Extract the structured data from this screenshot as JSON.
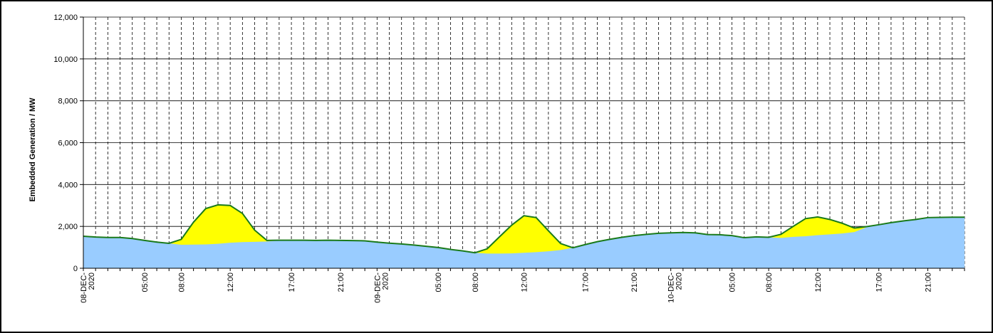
{
  "chart_data": {
    "type": "area",
    "ylabel": "Embedded Generation / MW",
    "xlabel": "",
    "ylim": [
      0,
      12000
    ],
    "y_ticks": [
      "0",
      "2,000",
      "4,000",
      "6,000",
      "8,000",
      "10,000",
      "12,000"
    ],
    "x_unit": "hours from 08-DEC-2020 00:00",
    "x_tick_labels": [
      {
        "x": 0,
        "lines": [
          "08-DEC-",
          "2020"
        ]
      },
      {
        "x": 5,
        "lines": [
          "05:00"
        ]
      },
      {
        "x": 8,
        "lines": [
          "08:00"
        ]
      },
      {
        "x": 12,
        "lines": [
          "12:00"
        ]
      },
      {
        "x": 17,
        "lines": [
          "17:00"
        ]
      },
      {
        "x": 21,
        "lines": [
          "21:00"
        ]
      },
      {
        "x": 24,
        "lines": [
          "09-DEC-",
          "2020"
        ]
      },
      {
        "x": 29,
        "lines": [
          "05:00"
        ]
      },
      {
        "x": 32,
        "lines": [
          "08:00"
        ]
      },
      {
        "x": 36,
        "lines": [
          "12:00"
        ]
      },
      {
        "x": 41,
        "lines": [
          "17:00"
        ]
      },
      {
        "x": 45,
        "lines": [
          "21:00"
        ]
      },
      {
        "x": 48,
        "lines": [
          "10-DEC-",
          "2020"
        ]
      },
      {
        "x": 53,
        "lines": [
          "05:00"
        ]
      },
      {
        "x": 56,
        "lines": [
          "08:00"
        ]
      },
      {
        "x": 60,
        "lines": [
          "12:00"
        ]
      },
      {
        "x": 65,
        "lines": [
          "17:00"
        ]
      },
      {
        "x": 69,
        "lines": [
          "21:00"
        ]
      }
    ],
    "series": [
      {
        "color": "#99ccff",
        "x": [
          0,
          1,
          2,
          3,
          4,
          5,
          6,
          7,
          8,
          9,
          10,
          11,
          12,
          13,
          14,
          15,
          16,
          17,
          18,
          19,
          20,
          21,
          22,
          23,
          24,
          25,
          26,
          27,
          28,
          29,
          30,
          31,
          32,
          33,
          34,
          35,
          36,
          37,
          38,
          39,
          40,
          41,
          42,
          43,
          44,
          45,
          46,
          47,
          48,
          49,
          50,
          51,
          52,
          53,
          54,
          55,
          56,
          57,
          58,
          59,
          60,
          61,
          62,
          63,
          64,
          65,
          66,
          67,
          68,
          69,
          70,
          71
        ],
        "values": [
          1530,
          1490,
          1470,
          1470,
          1420,
          1330,
          1250,
          1190,
          1120,
          1130,
          1140,
          1170,
          1220,
          1250,
          1260,
          1280,
          1320,
          1340,
          1340,
          1330,
          1340,
          1330,
          1320,
          1310,
          1250,
          1200,
          1160,
          1110,
          1050,
          990,
          900,
          830,
          740,
          700,
          700,
          710,
          740,
          770,
          810,
          870,
          980,
          1130,
          1270,
          1380,
          1480,
          1560,
          1620,
          1670,
          1690,
          1710,
          1690,
          1610,
          1600,
          1560,
          1460,
          1500,
          1480,
          1450,
          1500,
          1530,
          1580,
          1620,
          1660,
          1730,
          1960,
          2080,
          2180,
          2260,
          2330,
          2420,
          2430,
          2440
        ]
      },
      {
        "color": "#ffff00",
        "x": [
          0,
          1,
          2,
          3,
          4,
          5,
          6,
          7,
          8,
          9,
          10,
          11,
          12,
          13,
          14,
          15,
          16,
          17,
          18,
          19,
          20,
          21,
          22,
          23,
          24,
          25,
          26,
          27,
          28,
          29,
          30,
          31,
          32,
          33,
          34,
          35,
          36,
          37,
          38,
          39,
          40,
          41,
          42,
          43,
          44,
          45,
          46,
          47,
          48,
          49,
          50,
          51,
          52,
          53,
          54,
          55,
          56,
          57,
          58,
          59,
          60,
          61,
          62,
          63,
          64,
          65,
          66,
          67,
          68,
          69,
          70,
          71
        ],
        "values": [
          1530,
          1490,
          1470,
          1470,
          1420,
          1330,
          1250,
          1190,
          1380,
          2200,
          2850,
          3030,
          3000,
          2620,
          1820,
          1330,
          1340,
          1340,
          1340,
          1330,
          1340,
          1330,
          1320,
          1310,
          1250,
          1200,
          1160,
          1110,
          1050,
          990,
          900,
          830,
          740,
          930,
          1500,
          2060,
          2510,
          2420,
          1790,
          1180,
          980,
          1130,
          1270,
          1380,
          1480,
          1560,
          1620,
          1670,
          1690,
          1710,
          1690,
          1610,
          1600,
          1560,
          1460,
          1500,
          1480,
          1620,
          2000,
          2370,
          2450,
          2330,
          2150,
          1920,
          1990,
          2080,
          2180,
          2260,
          2330,
          2420,
          2430,
          2440
        ]
      }
    ],
    "line_color": "#1a7a1a",
    "grid": true
  }
}
